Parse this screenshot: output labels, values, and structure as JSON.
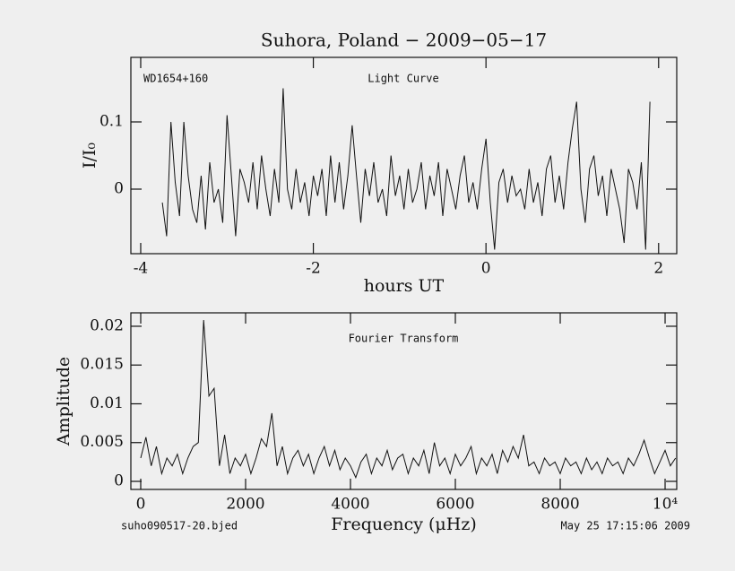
{
  "chart_data": [
    {
      "type": "line",
      "title": "Suhora, Poland − 2009−05−17",
      "annotations": [
        "WD1654+160",
        "Light Curve"
      ],
      "xlabel": "hours UT",
      "ylabel": "I/I₀",
      "xlim": [
        -4.114,
        2.21
      ],
      "xticks": [
        -4,
        -2,
        0,
        2
      ],
      "ylim": [
        -0.096,
        0.196
      ],
      "yticks": [
        0,
        0.1
      ],
      "color": "#111111",
      "x": [
        -3.75,
        -3.7,
        -3.65,
        -3.6,
        -3.55,
        -3.5,
        -3.45,
        -3.4,
        -3.35,
        -3.3,
        -3.25,
        -3.2,
        -3.15,
        -3.1,
        -3.05,
        -3.0,
        -2.95,
        -2.9,
        -2.85,
        -2.8,
        -2.75,
        -2.7,
        -2.65,
        -2.6,
        -2.55,
        -2.5,
        -2.45,
        -2.4,
        -2.35,
        -2.3,
        -2.25,
        -2.2,
        -2.15,
        -2.1,
        -2.05,
        -2.0,
        -1.95,
        -1.9,
        -1.85,
        -1.8,
        -1.75,
        -1.7,
        -1.65,
        -1.6,
        -1.55,
        -1.5,
        -1.45,
        -1.4,
        -1.35,
        -1.3,
        -1.25,
        -1.2,
        -1.15,
        -1.1,
        -1.05,
        -1.0,
        -0.95,
        -0.9,
        -0.85,
        -0.8,
        -0.75,
        -0.7,
        -0.65,
        -0.6,
        -0.55,
        -0.5,
        -0.45,
        -0.4,
        -0.35,
        -0.3,
        -0.25,
        -0.2,
        -0.15,
        -0.1,
        -0.05,
        0.0,
        0.05,
        0.1,
        0.15,
        0.2,
        0.25,
        0.3,
        0.35,
        0.4,
        0.45,
        0.5,
        0.55,
        0.6,
        0.65,
        0.7,
        0.75,
        0.8,
        0.85,
        0.9,
        0.95,
        1.0,
        1.05,
        1.1,
        1.15,
        1.2,
        1.25,
        1.3,
        1.35,
        1.4,
        1.45,
        1.5,
        1.55,
        1.6,
        1.65,
        1.7,
        1.75,
        1.8,
        1.85,
        1.9
      ],
      "series": [
        {
          "name": "I/I₀",
          "color": "#111111",
          "values": [
            -0.02,
            -0.07,
            0.1,
            0.01,
            -0.04,
            0.1,
            0.02,
            -0.03,
            -0.05,
            0.02,
            -0.06,
            0.04,
            -0.02,
            0.0,
            -0.05,
            0.11,
            0.02,
            -0.07,
            0.03,
            0.01,
            -0.02,
            0.04,
            -0.03,
            0.05,
            0.0,
            -0.04,
            0.03,
            -0.02,
            0.15,
            0.0,
            -0.03,
            0.03,
            -0.02,
            0.01,
            -0.04,
            0.02,
            -0.01,
            0.03,
            -0.04,
            0.05,
            -0.02,
            0.04,
            -0.03,
            0.02,
            0.095,
            0.02,
            -0.05,
            0.03,
            -0.01,
            0.04,
            -0.02,
            0.0,
            -0.04,
            0.05,
            -0.01,
            0.02,
            -0.03,
            0.03,
            -0.02,
            0.0,
            0.04,
            -0.03,
            0.02,
            -0.01,
            0.04,
            -0.04,
            0.03,
            0.0,
            -0.03,
            0.02,
            0.05,
            -0.02,
            0.01,
            -0.03,
            0.03,
            0.075,
            -0.02,
            -0.09,
            0.01,
            0.03,
            -0.02,
            0.02,
            -0.01,
            0.0,
            -0.03,
            0.03,
            -0.02,
            0.01,
            -0.04,
            0.03,
            0.05,
            -0.02,
            0.02,
            -0.03,
            0.04,
            0.09,
            0.13,
            0.0,
            -0.05,
            0.03,
            0.05,
            -0.01,
            0.02,
            -0.04,
            0.03,
            0.0,
            -0.03,
            -0.08,
            0.03,
            0.01,
            -0.03,
            0.04,
            -0.09,
            0.13
          ]
        }
      ]
    },
    {
      "type": "line",
      "annotations": [
        "Fourier Transform"
      ],
      "xlabel": "Frequency (μHz)",
      "ylabel": "Amplitude",
      "xlim": [
        -188,
        10222
      ],
      "xticks": [
        0,
        2000,
        4000,
        6000,
        8000,
        {
          "value": 10000,
          "label": "10⁴"
        }
      ],
      "ylim": [
        -0.00104,
        0.02173
      ],
      "yticks": [
        0,
        0.005,
        0.01,
        0.015,
        0.02
      ],
      "color": "#111111",
      "x": [
        0,
        100,
        200,
        300,
        400,
        500,
        600,
        700,
        800,
        900,
        1000,
        1100,
        1200,
        1300,
        1400,
        1500,
        1600,
        1700,
        1800,
        1900,
        2000,
        2100,
        2200,
        2300,
        2400,
        2500,
        2600,
        2700,
        2800,
        2900,
        3000,
        3100,
        3200,
        3300,
        3400,
        3500,
        3600,
        3700,
        3800,
        3900,
        4000,
        4100,
        4200,
        4300,
        4400,
        4500,
        4600,
        4700,
        4800,
        4900,
        5000,
        5100,
        5200,
        5300,
        5400,
        5500,
        5600,
        5700,
        5800,
        5900,
        6000,
        6100,
        6200,
        6300,
        6400,
        6500,
        6600,
        6700,
        6800,
        6900,
        7000,
        7100,
        7200,
        7300,
        7400,
        7500,
        7600,
        7700,
        7800,
        7900,
        8000,
        8100,
        8200,
        8300,
        8400,
        8500,
        8600,
        8700,
        8800,
        8900,
        9000,
        9100,
        9200,
        9300,
        9400,
        9500,
        9600,
        9700,
        9800,
        9900,
        10000,
        10100,
        10200
      ],
      "series": [
        {
          "name": "Amplitude",
          "color": "#111111",
          "values": [
            0.003,
            0.0057,
            0.002,
            0.0045,
            0.001,
            0.003,
            0.002,
            0.0035,
            0.001,
            0.003,
            0.0045,
            0.005,
            0.0208,
            0.011,
            0.012,
            0.002,
            0.006,
            0.001,
            0.003,
            0.002,
            0.0035,
            0.001,
            0.003,
            0.0055,
            0.0045,
            0.0088,
            0.002,
            0.0045,
            0.001,
            0.003,
            0.004,
            0.002,
            0.0035,
            0.001,
            0.003,
            0.0045,
            0.002,
            0.004,
            0.0015,
            0.003,
            0.002,
            0.0005,
            0.0025,
            0.0035,
            0.001,
            0.003,
            0.002,
            0.004,
            0.0015,
            0.003,
            0.0035,
            0.001,
            0.003,
            0.002,
            0.004,
            0.001,
            0.005,
            0.002,
            0.003,
            0.001,
            0.0035,
            0.002,
            0.003,
            0.0045,
            0.001,
            0.003,
            0.002,
            0.0035,
            0.001,
            0.004,
            0.0025,
            0.0045,
            0.003,
            0.006,
            0.002,
            0.0025,
            0.001,
            0.003,
            0.002,
            0.0025,
            0.001,
            0.003,
            0.002,
            0.0025,
            0.001,
            0.003,
            0.0015,
            0.0025,
            0.001,
            0.003,
            0.002,
            0.0025,
            0.001,
            0.003,
            0.002,
            0.0035,
            0.0053,
            0.003,
            0.001,
            0.0025,
            0.004,
            0.002,
            0.003
          ]
        }
      ]
    }
  ],
  "footer": {
    "file": "suho090517-20.bjed",
    "date": "May 25 17:15:06 2009"
  }
}
